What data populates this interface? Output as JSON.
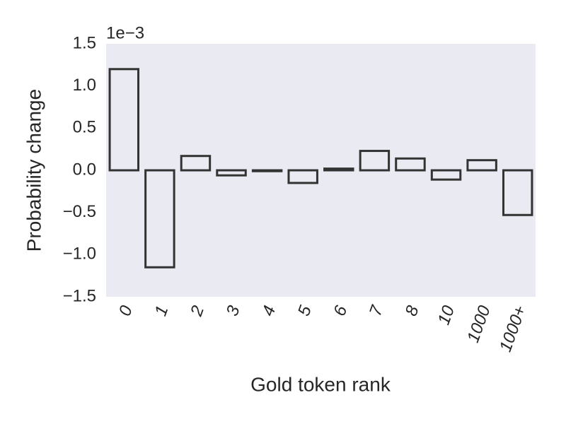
{
  "chart_data": {
    "type": "bar",
    "x_label": "Gold token rank",
    "y_label": "Probability change",
    "offset_label": "1e−3",
    "categories": [
      "0",
      "1",
      "2",
      "3",
      "4",
      "5",
      "6",
      "7",
      "8",
      "10",
      "1000",
      "1000+"
    ],
    "values": [
      1.2,
      -1.15,
      0.17,
      -0.06,
      -0.01,
      -0.15,
      0.02,
      0.23,
      0.14,
      -0.11,
      0.12,
      -0.53
    ],
    "color": "#eaeaf2",
    "edge_color": "#333333",
    "background": "#eaeaf2",
    "ylim": [
      -1.5,
      1.5
    ],
    "yticks": [
      {
        "value": -1.5,
        "label": "−1.5"
      },
      {
        "value": -1.0,
        "label": "−1.0"
      },
      {
        "value": -0.5,
        "label": "−0.5"
      },
      {
        "value": 0,
        "label": "0.0"
      },
      0.5,
      {
        "value": 1.0,
        "label": "1.0"
      },
      1.5
    ],
    "grid": false
  }
}
